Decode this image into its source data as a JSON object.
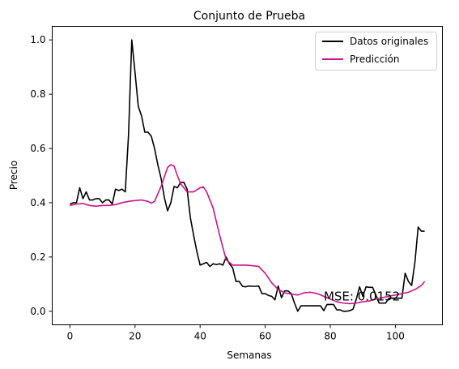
{
  "chart_data": {
    "type": "line",
    "title": "Conjunto de Prueba",
    "xlabel": "Semanas",
    "ylabel": "Precio",
    "xlim": [
      -5.45,
      114.45
    ],
    "ylim": [
      -0.05,
      1.05
    ],
    "xticks": [
      0,
      20,
      40,
      60,
      80,
      100
    ],
    "yticks": [
      0.0,
      0.2,
      0.4,
      0.6,
      0.8,
      1.0
    ],
    "ytick_labels": [
      "0.0",
      "0.2",
      "0.4",
      "0.6",
      "0.8",
      "1.0"
    ],
    "grid": false,
    "legend_position": "top-right",
    "annotation": {
      "text": "MSE: 0.0152",
      "x": 78,
      "y": 0.04
    },
    "series": [
      {
        "name": "Datos originales",
        "color": "#000000",
        "x": [
          0,
          1,
          2,
          3,
          4,
          5,
          6,
          7,
          8,
          9,
          10,
          11,
          12,
          13,
          14,
          15,
          16,
          17,
          18,
          19,
          20,
          21,
          22,
          23,
          24,
          25,
          26,
          27,
          28,
          29,
          30,
          31,
          32,
          33,
          34,
          35,
          36,
          37,
          38,
          39,
          40,
          41,
          42,
          43,
          44,
          45,
          46,
          47,
          48,
          49,
          50,
          51,
          52,
          53,
          54,
          55,
          56,
          57,
          58,
          59,
          60,
          61,
          62,
          63,
          64,
          65,
          66,
          67,
          68,
          69,
          70,
          71,
          72,
          73,
          74,
          75,
          76,
          77,
          78,
          79,
          80,
          81,
          82,
          83,
          84,
          85,
          86,
          87,
          88,
          89,
          90,
          91,
          92,
          93,
          94,
          95,
          96,
          97,
          98,
          99,
          100,
          101,
          102,
          103,
          104,
          105,
          106,
          107,
          108,
          109
        ],
        "y": [
          0.395,
          0.4,
          0.4,
          0.455,
          0.415,
          0.44,
          0.41,
          0.41,
          0.415,
          0.415,
          0.4,
          0.41,
          0.41,
          0.395,
          0.45,
          0.445,
          0.45,
          0.44,
          0.65,
          1.0,
          0.88,
          0.755,
          0.72,
          0.66,
          0.66,
          0.645,
          0.6,
          0.54,
          0.49,
          0.42,
          0.37,
          0.4,
          0.46,
          0.455,
          0.475,
          0.475,
          0.45,
          0.345,
          0.28,
          0.22,
          0.17,
          0.175,
          0.18,
          0.165,
          0.175,
          0.172,
          0.175,
          0.17,
          0.2,
          0.175,
          0.16,
          0.11,
          0.11,
          0.092,
          0.09,
          0.093,
          0.092,
          0.092,
          0.093,
          0.065,
          0.065,
          0.058,
          0.055,
          0.042,
          0.093,
          0.05,
          0.075,
          0.075,
          0.065,
          0.03,
          0.0,
          0.02,
          0.02,
          0.02,
          0.02,
          0.02,
          0.02,
          0.02,
          0.002,
          0.025,
          0.025,
          0.025,
          0.005,
          0.005,
          0.0,
          0.0,
          0.002,
          0.008,
          0.045,
          0.09,
          0.055,
          0.09,
          0.088,
          0.088,
          0.06,
          0.03,
          0.03,
          0.03,
          0.048,
          0.048,
          0.048,
          0.048,
          0.048,
          0.14,
          0.11,
          0.095,
          0.18,
          0.31,
          0.295,
          0.295
        ]
      },
      {
        "name": "Predicción",
        "color": "#cc1489",
        "x": [
          0,
          2,
          4,
          6,
          8,
          10,
          12,
          14,
          16,
          18,
          20,
          22,
          24,
          25,
          26,
          28,
          30,
          31,
          32,
          33,
          34,
          36,
          38,
          40,
          41,
          42,
          44,
          46,
          48,
          50,
          52,
          54,
          56,
          58,
          60,
          62,
          64,
          66,
          68,
          70,
          72,
          74,
          76,
          78,
          80,
          82,
          84,
          86,
          88,
          90,
          92,
          94,
          96,
          98,
          100,
          102,
          104,
          106,
          108,
          109
        ],
        "y": [
          0.39,
          0.395,
          0.397,
          0.39,
          0.387,
          0.39,
          0.39,
          0.393,
          0.4,
          0.405,
          0.408,
          0.41,
          0.405,
          0.398,
          0.405,
          0.46,
          0.53,
          0.54,
          0.535,
          0.5,
          0.47,
          0.44,
          0.44,
          0.455,
          0.458,
          0.44,
          0.38,
          0.28,
          0.19,
          0.17,
          0.17,
          0.17,
          0.168,
          0.165,
          0.14,
          0.105,
          0.08,
          0.068,
          0.063,
          0.06,
          0.068,
          0.07,
          0.065,
          0.055,
          0.045,
          0.035,
          0.03,
          0.028,
          0.03,
          0.035,
          0.038,
          0.045,
          0.05,
          0.055,
          0.06,
          0.065,
          0.07,
          0.08,
          0.095,
          0.11
        ]
      }
    ]
  }
}
